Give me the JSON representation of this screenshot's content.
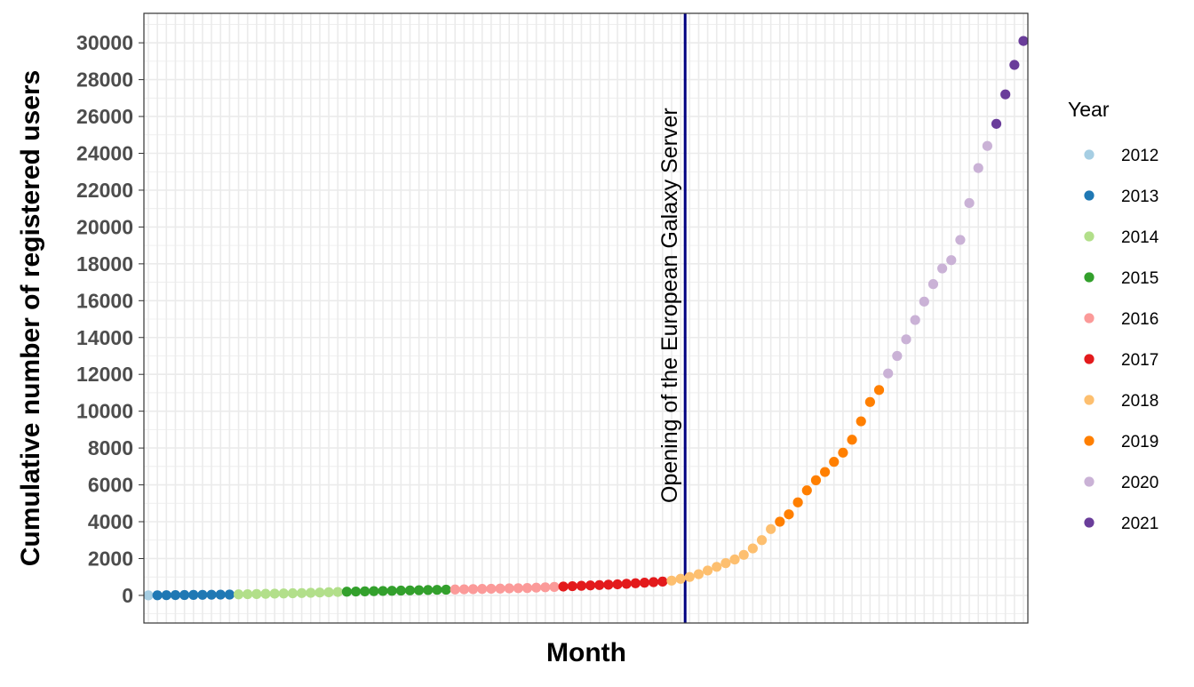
{
  "chart_data": {
    "type": "scatter",
    "title": "",
    "xlabel": "Month",
    "ylabel": "Cumulative number of registered users",
    "ylim": [
      -1500,
      31600
    ],
    "yticks": [
      0,
      2000,
      4000,
      6000,
      8000,
      10000,
      12000,
      14000,
      16000,
      18000,
      20000,
      22000,
      24000,
      26000,
      28000,
      30000
    ],
    "xticks_visible": false,
    "grid": true,
    "legend": {
      "title": "Year",
      "placement": "right"
    },
    "annotation": {
      "text": "Opening of the European Galaxy Server",
      "x_month_index": 59.5,
      "line_color": "#000080"
    },
    "series": [
      {
        "name": "2012",
        "color": "#a6cee3",
        "values": [
          0
        ]
      },
      {
        "name": "2013",
        "color": "#1f78b4",
        "values": [
          5,
          10,
          15,
          20,
          25,
          30,
          35,
          40,
          45
        ]
      },
      {
        "name": "2014",
        "color": "#b2df8a",
        "values": [
          55,
          65,
          75,
          85,
          95,
          105,
          115,
          125,
          140,
          155,
          170,
          185
        ]
      },
      {
        "name": "2015",
        "color": "#33a02c",
        "values": [
          200,
          210,
          220,
          230,
          240,
          250,
          260,
          270,
          280,
          290,
          300,
          310
        ]
      },
      {
        "name": "2016",
        "color": "#fb9a99",
        "values": [
          320,
          330,
          340,
          350,
          360,
          370,
          380,
          390,
          400,
          420,
          440,
          460
        ]
      },
      {
        "name": "2017",
        "color": "#e31a1c",
        "values": [
          480,
          500,
          520,
          540,
          560,
          580,
          600,
          630,
          660,
          690,
          720,
          750
        ]
      },
      {
        "name": "2018",
        "color": "#fdbf6f",
        "values": [
          800,
          900,
          1000,
          1150,
          1350,
          1550,
          1750,
          1950,
          2200,
          2550,
          3000,
          3600
        ]
      },
      {
        "name": "2019",
        "color": "#ff7f00",
        "values": [
          4000,
          4400,
          5050,
          5700,
          6250,
          6700,
          7250,
          7750,
          8450,
          9450,
          10500,
          11150
        ]
      },
      {
        "name": "2020",
        "color": "#cab2d6",
        "values": [
          12050,
          13000,
          13900,
          14950,
          15950,
          16900,
          17750,
          18200,
          19300,
          21300,
          23200,
          24400
        ]
      },
      {
        "name": "2021",
        "color": "#6a3d9a",
        "values": [
          25600,
          27200,
          28800,
          30100
        ]
      }
    ]
  }
}
